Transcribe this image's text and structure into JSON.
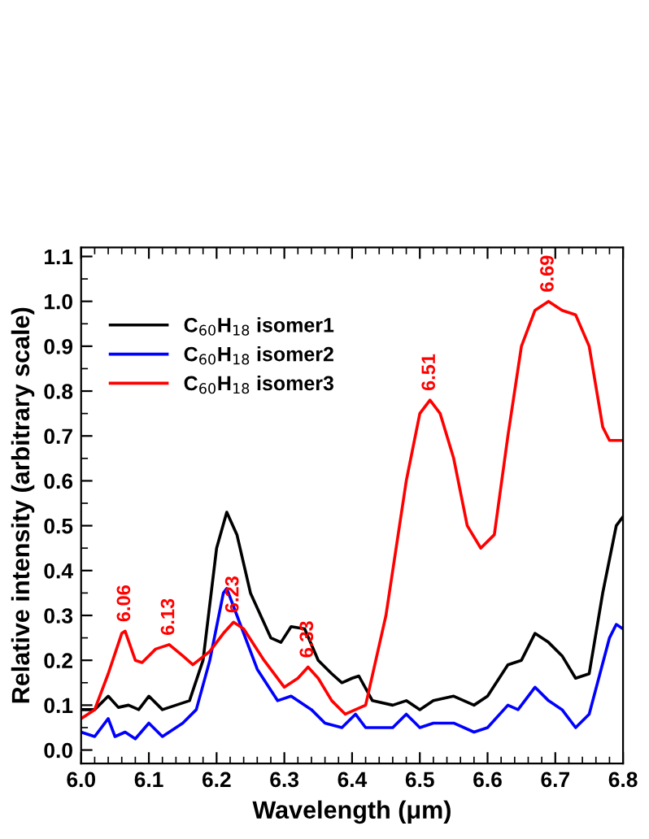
{
  "chart_data": {
    "type": "line",
    "xlabel": "Wavelength (μm)",
    "ylabel": "Relative intensity (arbitrary scale)",
    "xlim": [
      6.0,
      6.8
    ],
    "xticks": [
      {
        "value": 6.0,
        "label": "6.0"
      },
      6.1,
      6.2,
      6.3,
      6.4,
      6.5,
      6.6,
      6.7,
      6.8
    ],
    "ylim": [
      -0.03,
      1.12
    ],
    "yticks": [
      {
        "value": 0.0,
        "label": "0.0"
      },
      0.1,
      0.2,
      0.3,
      0.4,
      0.5,
      0.6,
      0.7,
      0.8,
      0.9,
      {
        "value": 1.0,
        "label": "1.0"
      },
      1.1
    ],
    "grid": false,
    "legend": "top left",
    "marker": "none",
    "line_style": "solid",
    "series": [
      {
        "name": "C$_{60}$H$_{18}$ isomer1",
        "color": "#000000",
        "x": [
          6.0,
          6.02,
          6.04,
          6.055,
          6.07,
          6.085,
          6.1,
          6.12,
          6.14,
          6.16,
          6.18,
          6.2,
          6.215,
          6.23,
          6.25,
          6.28,
          6.295,
          6.31,
          6.33,
          6.35,
          6.37,
          6.385,
          6.4,
          6.41,
          6.43,
          6.46,
          6.48,
          6.5,
          6.52,
          6.55,
          6.58,
          6.6,
          6.63,
          6.65,
          6.67,
          6.69,
          6.71,
          6.73,
          6.75,
          6.77,
          6.79,
          6.8
        ],
        "values": [
          0.09,
          0.09,
          0.12,
          0.095,
          0.1,
          0.09,
          0.12,
          0.09,
          0.1,
          0.11,
          0.2,
          0.45,
          0.53,
          0.48,
          0.35,
          0.25,
          0.24,
          0.275,
          0.27,
          0.2,
          0.17,
          0.15,
          0.16,
          0.165,
          0.11,
          0.1,
          0.11,
          0.09,
          0.11,
          0.12,
          0.1,
          0.12,
          0.19,
          0.2,
          0.26,
          0.24,
          0.21,
          0.16,
          0.17,
          0.35,
          0.5,
          0.52
        ]
      },
      {
        "name": "C$_{60}$H$_{18}$ isomer2",
        "color": "#0000ff",
        "x": [
          6.0,
          6.02,
          6.04,
          6.05,
          6.065,
          6.08,
          6.1,
          6.12,
          6.15,
          6.17,
          6.19,
          6.21,
          6.215,
          6.23,
          6.26,
          6.29,
          6.31,
          6.34,
          6.36,
          6.385,
          6.405,
          6.42,
          6.46,
          6.48,
          6.5,
          6.52,
          6.55,
          6.58,
          6.6,
          6.63,
          6.645,
          6.67,
          6.69,
          6.71,
          6.73,
          6.75,
          6.78,
          6.79,
          6.8
        ],
        "values": [
          0.04,
          0.03,
          0.07,
          0.03,
          0.04,
          0.025,
          0.06,
          0.03,
          0.06,
          0.09,
          0.2,
          0.35,
          0.36,
          0.3,
          0.18,
          0.11,
          0.12,
          0.09,
          0.06,
          0.05,
          0.08,
          0.05,
          0.05,
          0.08,
          0.05,
          0.06,
          0.06,
          0.04,
          0.05,
          0.1,
          0.09,
          0.14,
          0.11,
          0.09,
          0.05,
          0.08,
          0.25,
          0.28,
          0.27
        ]
      },
      {
        "name": "C$_{60}$H$_{18}$ isomer3",
        "color": "#ff0000",
        "x": [
          6.0,
          6.02,
          6.04,
          6.06,
          6.065,
          6.08,
          6.09,
          6.11,
          6.13,
          6.15,
          6.165,
          6.19,
          6.21,
          6.225,
          6.24,
          6.27,
          6.3,
          6.32,
          6.335,
          6.35,
          6.37,
          6.39,
          6.42,
          6.45,
          6.48,
          6.5,
          6.515,
          6.53,
          6.55,
          6.57,
          6.59,
          6.61,
          6.63,
          6.65,
          6.67,
          6.69,
          6.71,
          6.73,
          6.75,
          6.77,
          6.78,
          6.8
        ],
        "values": [
          0.07,
          0.09,
          0.17,
          0.26,
          0.265,
          0.2,
          0.195,
          0.225,
          0.235,
          0.21,
          0.19,
          0.22,
          0.26,
          0.285,
          0.27,
          0.2,
          0.14,
          0.16,
          0.185,
          0.16,
          0.11,
          0.08,
          0.1,
          0.3,
          0.6,
          0.75,
          0.78,
          0.75,
          0.65,
          0.5,
          0.45,
          0.48,
          0.7,
          0.9,
          0.98,
          1.0,
          0.98,
          0.97,
          0.9,
          0.72,
          0.69,
          0.69
        ]
      }
    ],
    "annotations": [
      {
        "text": "6.06",
        "x": 6.065,
        "y": 0.265
      },
      {
        "text": "6.13",
        "x": 6.13,
        "y": 0.235
      },
      {
        "text": "6.23",
        "x": 6.225,
        "y": 0.285
      },
      {
        "text": "6.33",
        "x": 6.335,
        "y": 0.185
      },
      {
        "text": "6.51",
        "x": 6.515,
        "y": 0.78
      },
      {
        "text": "6.69",
        "x": 6.69,
        "y": 1.0
      }
    ]
  }
}
